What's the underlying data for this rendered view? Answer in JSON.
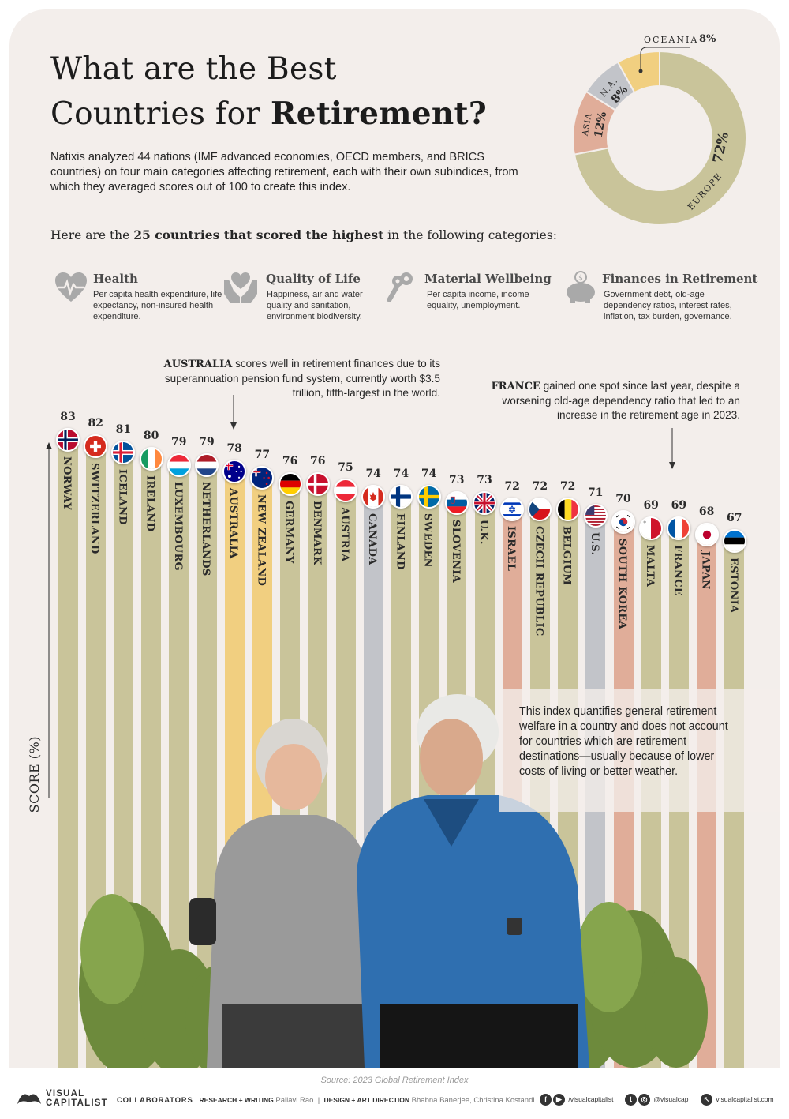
{
  "header": {
    "title_line1": "What are the Best",
    "title_line2_plain": "Countries for ",
    "title_line2_bold": "Retirement?",
    "intro_prefix": "Natixis analyzed ",
    "intro_count": "44",
    "intro_rest": " nations (IMF advanced economies, OECD members, and BRICS countries) on four main categories affecting retirement, each with their own subindices, from which they averaged scores out of 100 to create this index.",
    "subhead_prefix": "Here are the ",
    "subhead_bold": "25 countries that scored the highest",
    "subhead_suffix": " in the following categories:"
  },
  "categories": [
    {
      "title": "Health",
      "desc": "Per capita health expenditure, life expectancy, non-insured health expenditure.",
      "icon": "heart-pulse-icon"
    },
    {
      "title": "Quality of Life",
      "desc": "Happiness, air and water quality and sanitation, environment biodiversity.",
      "icon": "hands-heart-icon"
    },
    {
      "title": "Material Wellbeing",
      "desc": "Per capita income, income equality, unemployment.",
      "icon": "keys-icon"
    },
    {
      "title": "Finances in Retirement",
      "desc": "Government debt, old-age dependency ratios, interest rates, inflation, tax burden, governance.",
      "icon": "piggy-bank-icon"
    }
  ],
  "annotations": {
    "australia_bold": "AUSTRALIA",
    "australia_text": " scores well in retirement finances due to its superannuation pension fund system, currently worth $3.5 trillion, fifth-largest in the world.",
    "france_bold": "FRANCE",
    "france_text": " gained one spot since last year, despite a worsening old-age dependency ratio that led to an increase in the retirement age in 2023.",
    "disclaimer": "This index quantifies general retirement welfare in a country and does not account for countries which are retirement destinations—usually because of lower costs of living or better weather."
  },
  "colors": {
    "Europe": "#c9c49a",
    "Oceania": "#f1cf80",
    "N.A.": "#c2c4c9",
    "Asia": "#e0ad99",
    "background": "#f3eeeb"
  },
  "chart_data": [
    {
      "type": "bar",
      "title": "",
      "ylabel": "SCORE (%)",
      "xlabel": "",
      "ylim": [
        0,
        83
      ],
      "grid": false,
      "categories": [
        "NORWAY",
        "SWITZERLAND",
        "ICELAND",
        "IRELAND",
        "LUXEMBOURG",
        "NETHERLANDS",
        "AUSTRALIA",
        "NEW ZEALAND",
        "GERMANY",
        "DENMARK",
        "AUSTRIA",
        "CANADA",
        "FINLAND",
        "SWEDEN",
        "SLOVENIA",
        "U.K.",
        "ISRAEL",
        "CZECH REPUBLIC",
        "BELGIUM",
        "U.S.",
        "SOUTH KOREA",
        "MALTA",
        "FRANCE",
        "JAPAN",
        "ESTONIA"
      ],
      "values": [
        83,
        82,
        81,
        80,
        79,
        79,
        78,
        77,
        76,
        76,
        75,
        74,
        74,
        74,
        73,
        73,
        72,
        72,
        72,
        71,
        70,
        69,
        69,
        68,
        67
      ],
      "regions": [
        "Europe",
        "Europe",
        "Europe",
        "Europe",
        "Europe",
        "Europe",
        "Oceania",
        "Oceania",
        "Europe",
        "Europe",
        "Europe",
        "N.A.",
        "Europe",
        "Europe",
        "Europe",
        "Europe",
        "Asia",
        "Europe",
        "Europe",
        "N.A.",
        "Asia",
        "Europe",
        "Europe",
        "Asia",
        "Europe"
      ],
      "flags": [
        "norway-flag",
        "switzerland-flag",
        "iceland-flag",
        "ireland-flag",
        "luxembourg-flag",
        "netherlands-flag",
        "australia-flag",
        "new-zealand-flag",
        "germany-flag",
        "denmark-flag",
        "austria-flag",
        "canada-flag",
        "finland-flag",
        "sweden-flag",
        "slovenia-flag",
        "uk-flag",
        "israel-flag",
        "czech-flag",
        "belgium-flag",
        "us-flag",
        "south-korea-flag",
        "malta-flag",
        "france-flag",
        "japan-flag",
        "estonia-flag"
      ]
    },
    {
      "type": "pie",
      "title": "",
      "slices": [
        {
          "label": "EUROPE",
          "value": 72,
          "display": "72%"
        },
        {
          "label": "ASIA",
          "value": 12,
          "display": "12%"
        },
        {
          "label": "N.A.",
          "value": 8,
          "display": "8%"
        },
        {
          "label": "OCEANIA",
          "value": 8,
          "display": "8%"
        }
      ]
    }
  ],
  "footer": {
    "source": "Source: 2023 Global Retirement Index",
    "brand_line1": "VISUAL",
    "brand_line2": "CAPITALIST",
    "collaborators": "COLLABORATORS",
    "research_label": "RESEARCH + WRITING",
    "research_name": "Pallavi Rao",
    "separator": "|",
    "design_label": "DESIGN + ART DIRECTION",
    "design_names": "Bhabna Banerjee, Christina Kostandi",
    "social1": "/visualcapitalist",
    "social2": "@visualcap",
    "social3": "visualcapitalist.com"
  }
}
